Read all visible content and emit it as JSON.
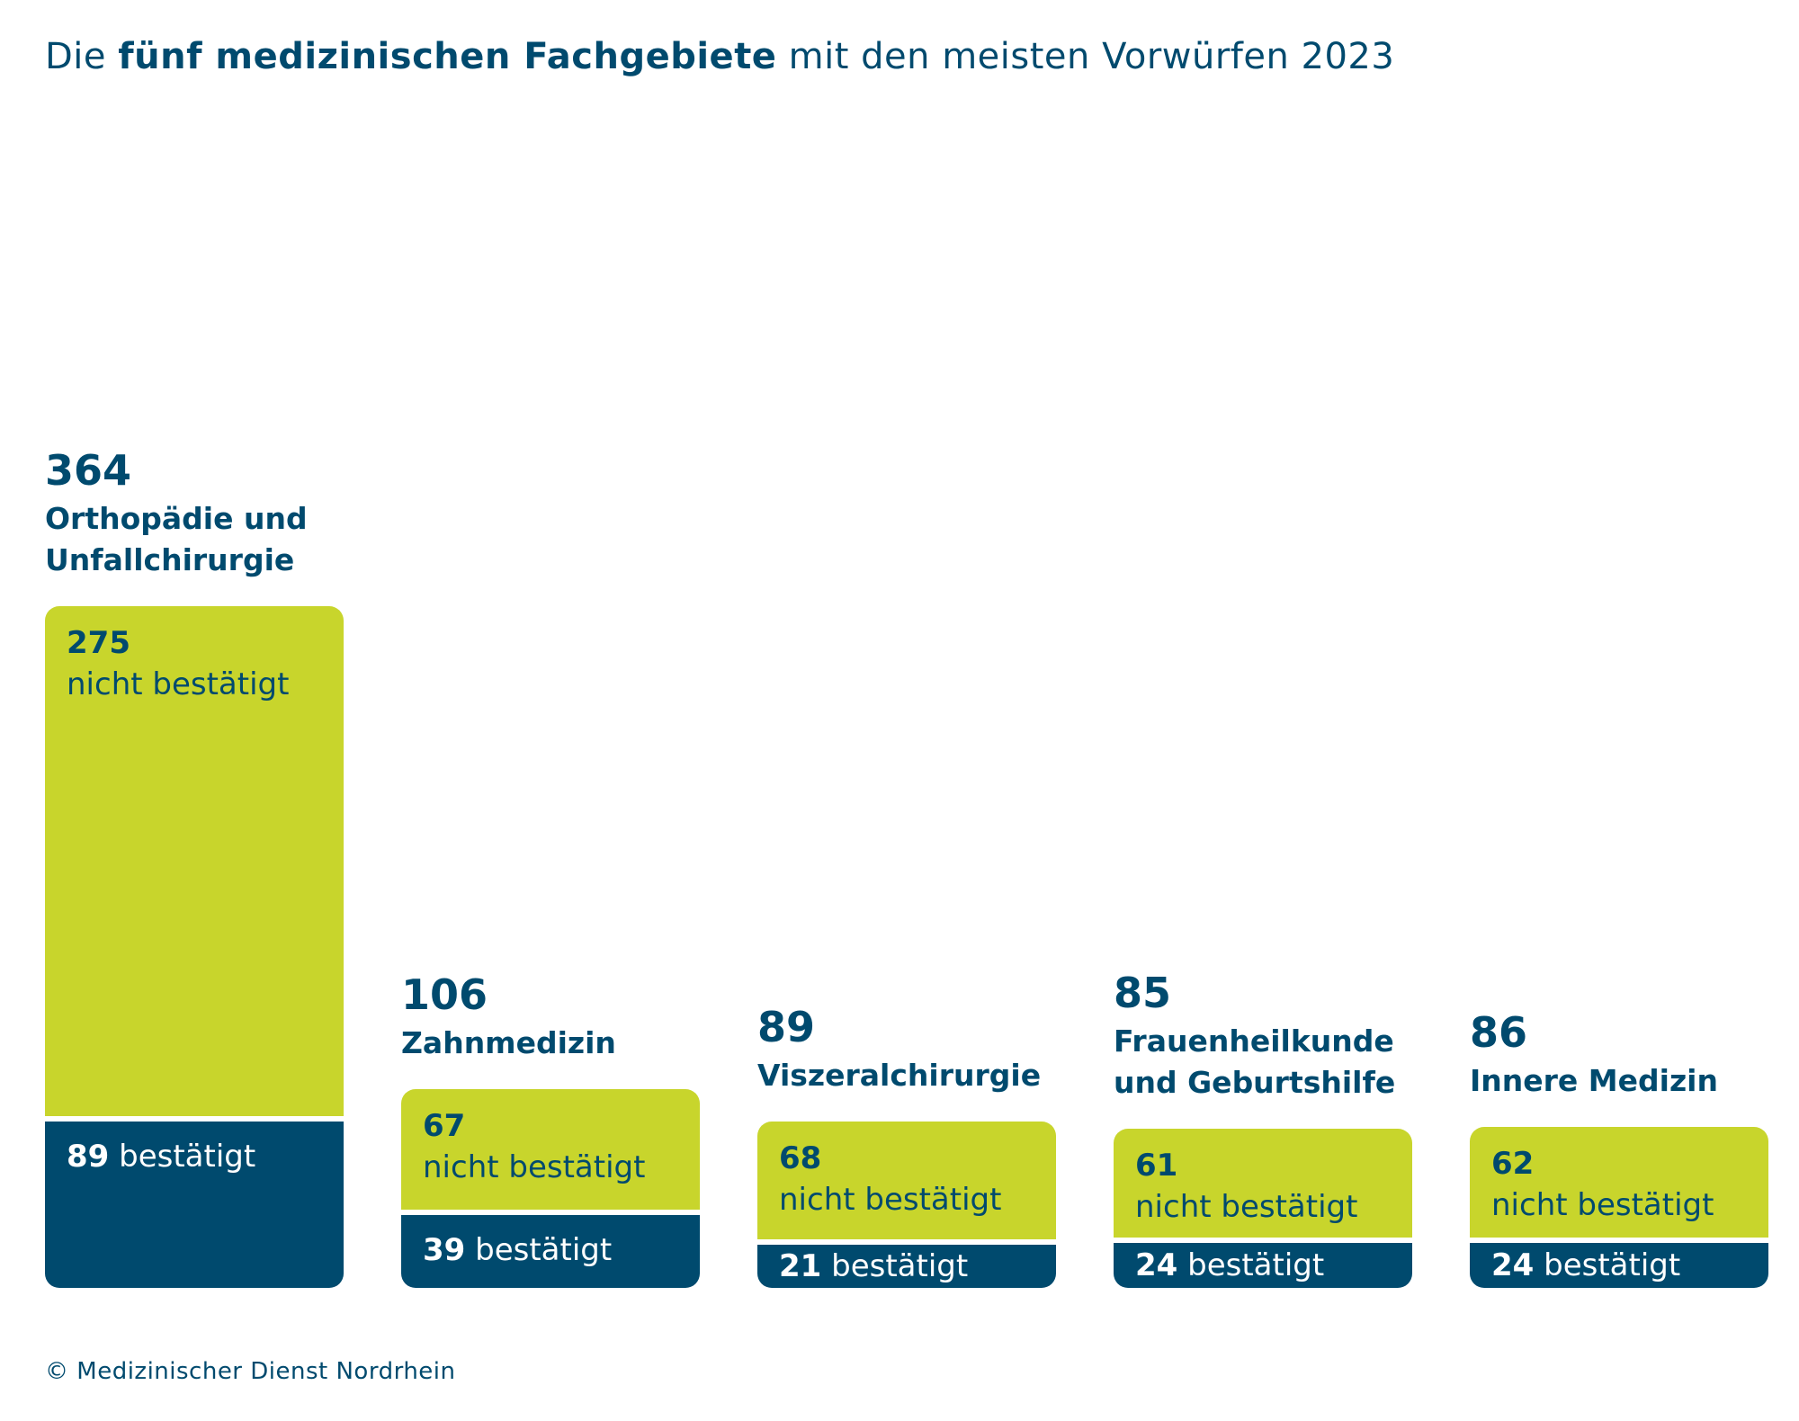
{
  "title": {
    "prefix": "Die ",
    "bold": "fünf medizinischen Fachgebiete",
    "suffix": " mit den meisten Vorwürfen 2023"
  },
  "footer": "© Medizinischer Dienst Nordrhein",
  "colors": {
    "dark": "#004a6e",
    "lime": "#c8d52c",
    "white": "#ffffff"
  },
  "chart_data": {
    "type": "bar",
    "stacked": true,
    "categories": [
      "Orthopädie und Unfallchirurgie",
      "Zahnmedizin",
      "Viszeralchirurgie",
      "Frauenheilkunde und Geburtshilfe",
      "Innere Medizin"
    ],
    "category_lines": [
      [
        "Orthopädie und",
        "Unfallchirurgie"
      ],
      [
        "Zahnmedizin"
      ],
      [
        "Viszeralchirurgie"
      ],
      [
        "Frauenheilkunde",
        "und Geburtshilfe"
      ],
      [
        "Innere Medizin"
      ]
    ],
    "totals": [
      364,
      106,
      89,
      85,
      86
    ],
    "series": [
      {
        "name": "bestätigt",
        "values": [
          89,
          39,
          21,
          24,
          24
        ],
        "color": "#004a6e"
      },
      {
        "name": "nicht bestätigt",
        "values": [
          275,
          67,
          68,
          61,
          62
        ],
        "color": "#c8d52c"
      }
    ]
  }
}
